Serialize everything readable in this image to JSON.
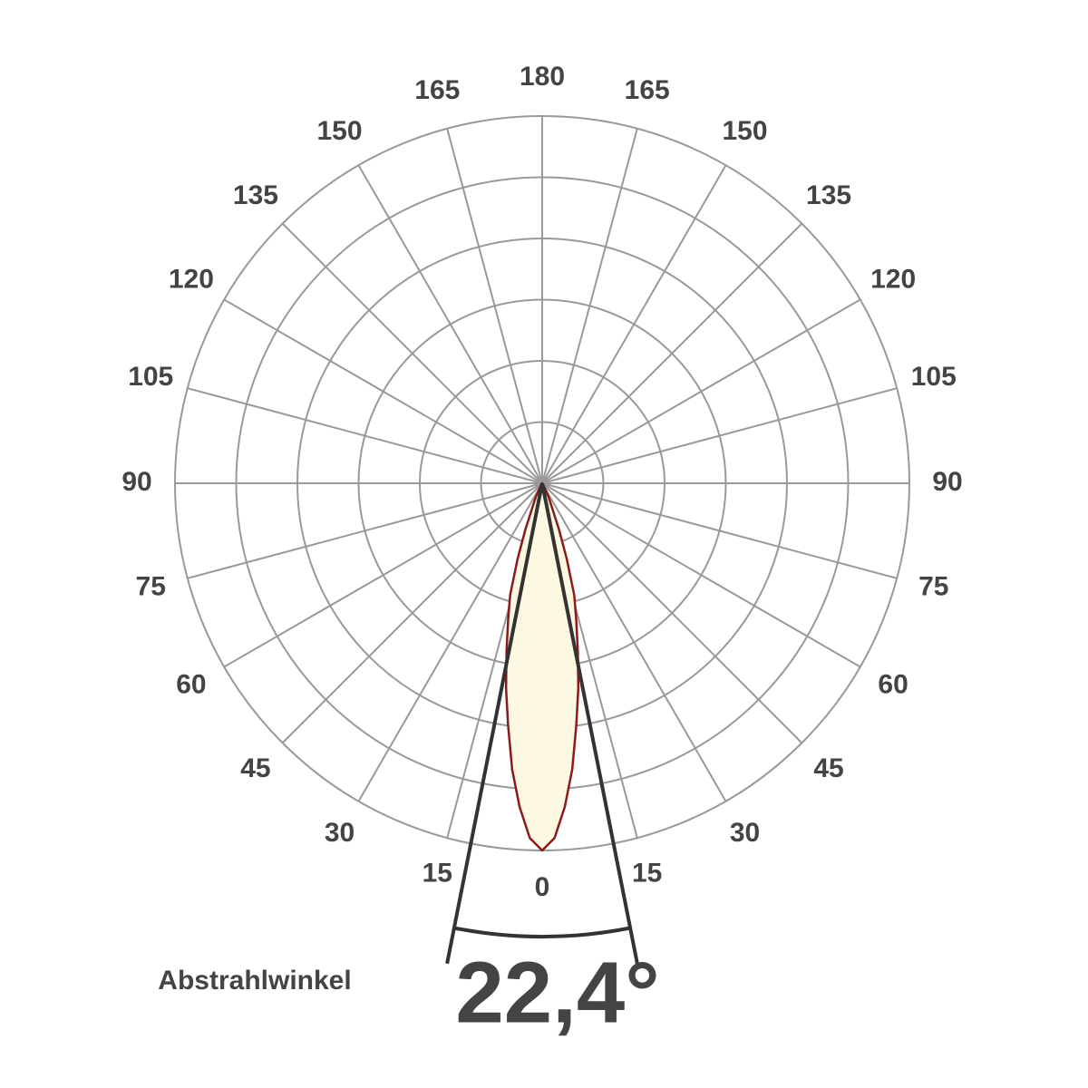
{
  "chart_data": {
    "type": "polar",
    "angle_ticks": [
      0,
      15,
      30,
      45,
      60,
      75,
      90,
      105,
      120,
      135,
      150,
      165,
      180
    ],
    "rlim": [
      0,
      6
    ],
    "rticks": [
      1,
      2,
      3,
      4,
      5,
      6
    ],
    "grid": true,
    "series": [
      {
        "color": "#8b1a1a",
        "fill": "#fdf8e1",
        "x": [
          -30,
          -25,
          -20,
          -18,
          -16,
          -14,
          -12,
          -10,
          -8,
          -6,
          -4,
          -2,
          0,
          2,
          4,
          6,
          8,
          10,
          12,
          14,
          16,
          18,
          20,
          25,
          30
        ],
        "values": [
          0.05,
          0.25,
          0.8,
          1.3,
          1.9,
          2.3,
          2.8,
          3.4,
          4.0,
          4.7,
          5.3,
          5.8,
          6.0,
          5.8,
          5.3,
          4.7,
          4.0,
          3.4,
          2.8,
          2.3,
          1.9,
          1.3,
          0.8,
          0.25,
          0.05
        ]
      }
    ],
    "beam_angle": {
      "value": 22.4,
      "label": "22,4°"
    },
    "beam_label": "Abstrahlwinkel"
  }
}
